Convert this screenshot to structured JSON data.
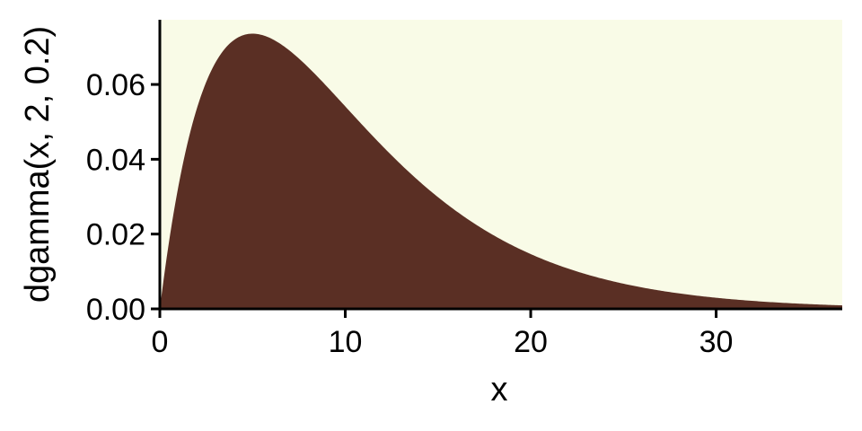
{
  "chart_data": {
    "type": "area",
    "function": "dgamma(x, 2, 0.2)",
    "distribution": {
      "name": "gamma",
      "shape": 2,
      "rate": 0.2
    },
    "xlabel": "x",
    "ylabel": "dgamma(x, 2, 0.2)",
    "xlim": [
      0,
      36.8
    ],
    "ylim": [
      0,
      0.0773
    ],
    "xticks": [
      0,
      10,
      20,
      30
    ],
    "xtick_labels": [
      "0",
      "10",
      "20",
      "30"
    ],
    "yticks": [
      0,
      0.02,
      0.04,
      0.06
    ],
    "ytick_labels": [
      "0.00",
      "0.02",
      "0.04",
      "0.06"
    ],
    "peak": {
      "x": 5,
      "y": 0.0736
    },
    "grid": false,
    "legend": "none",
    "colors": {
      "fill": "#5a2f24",
      "panel_background": "#f9fbe7",
      "axis": "#000000",
      "page_background": "#ffffff"
    }
  }
}
